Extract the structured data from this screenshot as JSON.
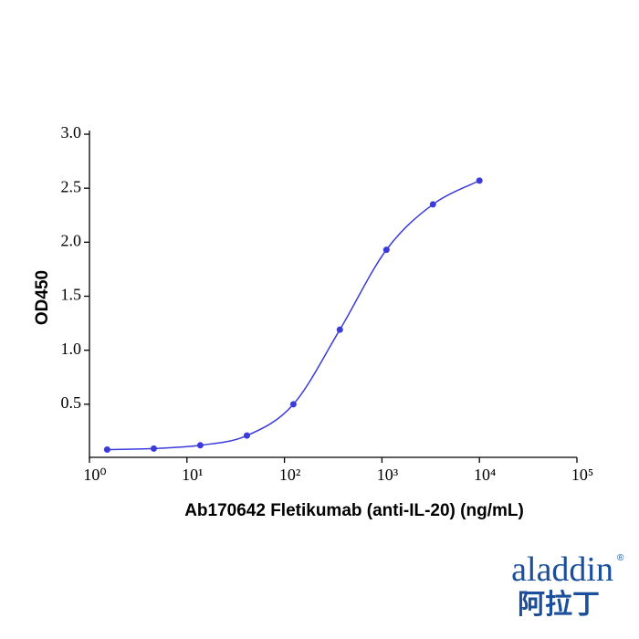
{
  "chart_data": {
    "type": "scatter",
    "curve": true,
    "color": "#3b3bdb",
    "ylabel": "OD450",
    "xlabel": "Ab170642 Fletikumab (anti-IL-20) (ng/mL)",
    "x": [
      1.52,
      4.57,
      13.7,
      41.2,
      123.5,
      370,
      1111,
      3333,
      10000
    ],
    "values": [
      0.08,
      0.09,
      0.12,
      0.21,
      0.5,
      1.19,
      1.93,
      2.35,
      2.57
    ],
    "xscale": "log",
    "xlim": [
      1,
      100000
    ],
    "xticks": [
      {
        "value": 1,
        "label": "10⁰"
      },
      {
        "value": 10,
        "label": "10¹"
      },
      {
        "value": 100,
        "label": "10²"
      },
      {
        "value": 1000,
        "label": "10³"
      },
      {
        "value": 10000,
        "label": "10⁴"
      },
      {
        "value": 100000,
        "label": "10⁵"
      }
    ],
    "ylim": [
      0,
      3
    ],
    "yticks": [
      0.5,
      {
        "value": 1,
        "label": "1.0"
      },
      1.5,
      {
        "value": 2,
        "label": "2.0"
      },
      2.5,
      {
        "value": 3,
        "label": "3.0"
      }
    ],
    "grid": false
  },
  "logo": {
    "text": "aladdin",
    "chinese": "阿拉丁",
    "mark": "®"
  }
}
